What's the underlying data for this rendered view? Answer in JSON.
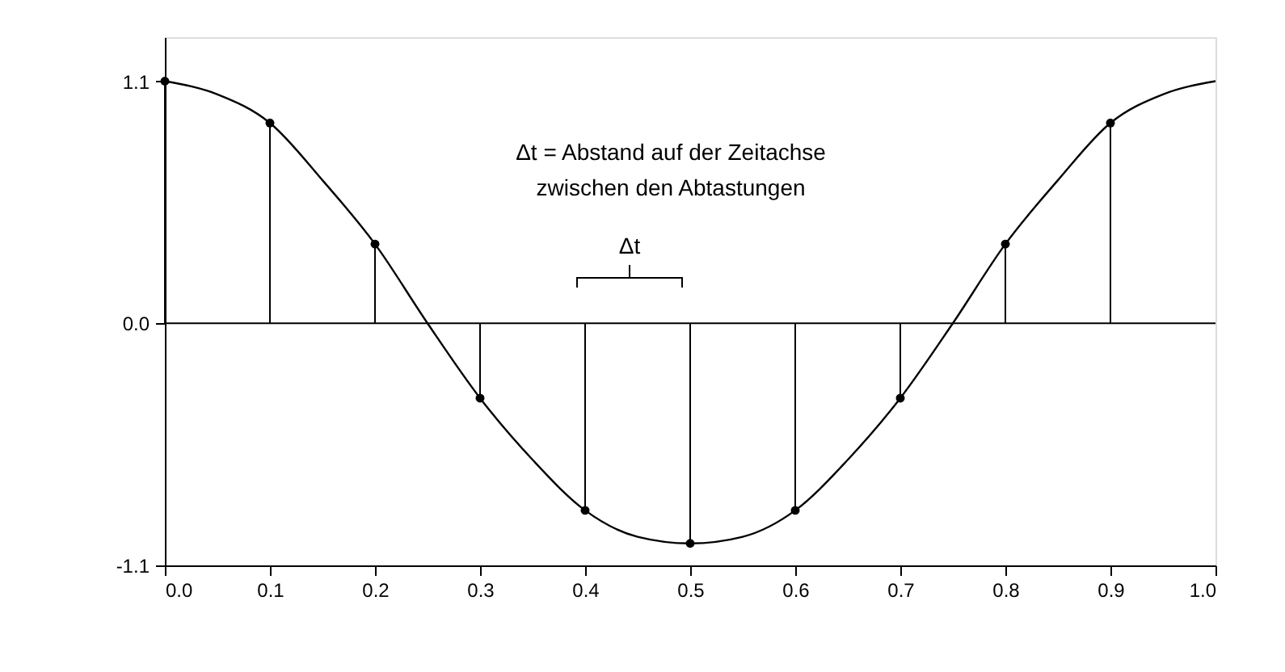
{
  "chart_data": {
    "type": "line",
    "xlim": [
      0,
      1
    ],
    "ylim": [
      -1.1,
      1.3
    ],
    "xticks": [
      {
        "value": 0,
        "label": "0.0"
      },
      0.1,
      0.2,
      0.3,
      0.4,
      0.5,
      0.6,
      0.7,
      0.8,
      0.9,
      {
        "value": 1,
        "label": "1.0"
      }
    ],
    "yticks": [
      {
        "value": -1.1,
        "label": "-1.1"
      },
      {
        "value": 0,
        "label": "0.0"
      },
      {
        "value": 1.1,
        "label": "1.1"
      }
    ],
    "grid": false,
    "series": [
      {
        "color": "#000000",
        "marker": "none",
        "line_style": "solid",
        "x": [
          0,
          0.05,
          0.1,
          0.15,
          0.2,
          0.25,
          0.3,
          0.35,
          0.4,
          0.45,
          0.5,
          0.55,
          0.6,
          0.65,
          0.7,
          0.75,
          0.8,
          0.85,
          0.9,
          0.95,
          1.0
        ],
        "values": [
          1.1,
          1.04,
          0.91,
          0.65,
          0.36,
          0.0,
          -0.34,
          -0.62,
          -0.85,
          -0.97,
          -1.0,
          -0.97,
          -0.85,
          -0.62,
          -0.34,
          0.0,
          0.36,
          0.65,
          0.91,
          1.04,
          1.1
        ]
      },
      {
        "type": "lollipop",
        "color": "#000000",
        "marker": "circle",
        "x": [
          0,
          0.1,
          0.2,
          0.3,
          0.4,
          0.5,
          0.6,
          0.7,
          0.8,
          0.9
        ],
        "values": [
          1.1,
          0.91,
          0.36,
          -0.34,
          -0.85,
          -1.0,
          -0.85,
          -0.34,
          0.36,
          0.91
        ]
      }
    ],
    "ref_lines": [
      {
        "axis": "y",
        "value": 0,
        "label": null,
        "color": "#000000"
      }
    ],
    "annotations": [
      "Δt = Abstand auf der Zeitachse\nzwischen den Abtastungen",
      "Δt"
    ]
  }
}
